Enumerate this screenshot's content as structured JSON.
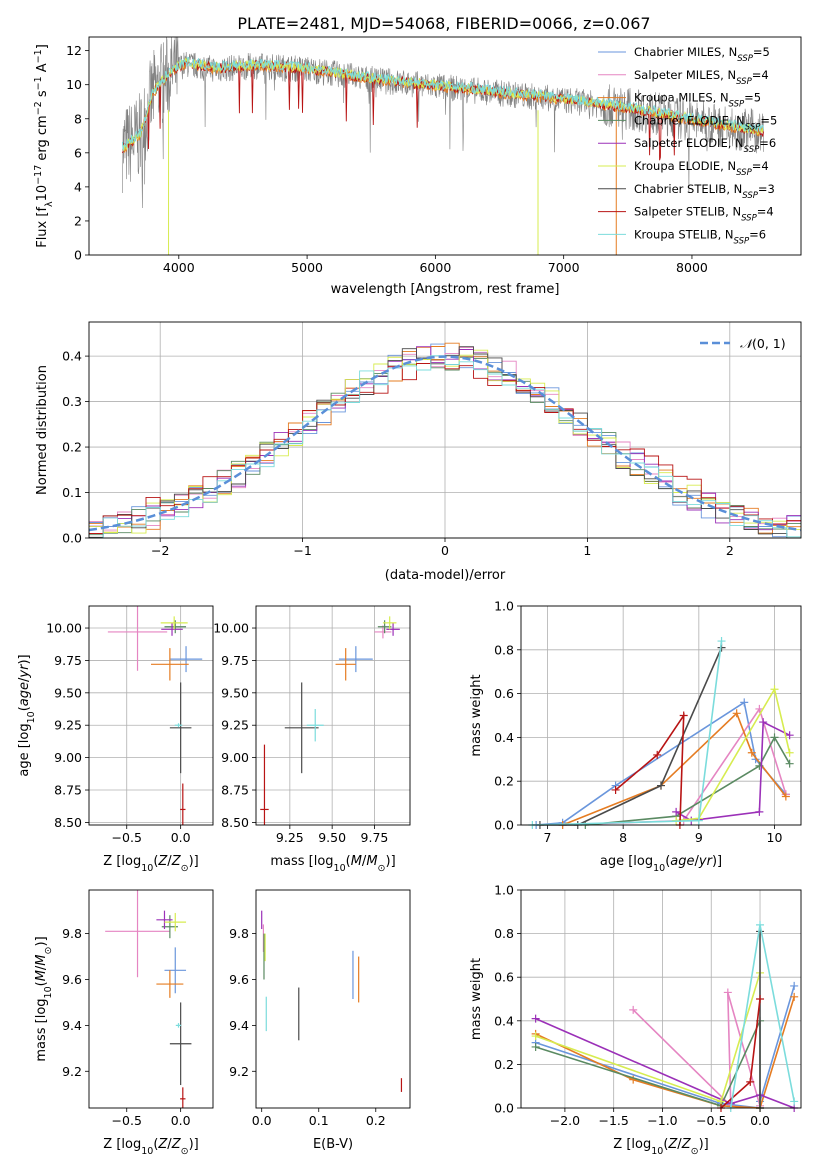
{
  "figure": {
    "title": "PLATE=2481, MJD=54068, FIBERID=0066, z=0.067"
  },
  "colors": {
    "Chabrier MILES": "#6a96dc",
    "Salpeter MILES": "#e585c2",
    "Kroupa MILES": "#e57c22",
    "Chabrier ELODIE": "#5a8a62",
    "Salpeter ELODIE": "#9b30b8",
    "Kroupa ELODIE": "#d7ec50",
    "Chabrier STELIB": "#4a4a4a",
    "Salpeter STELIB": "#b81414",
    "Kroupa STELIB": "#7bdcdc",
    "data": "#808080",
    "normal": "#5a8fd8"
  },
  "chart_data": [
    {
      "type": "line",
      "panel": "spectrum",
      "xlabel": "wavelength [Angstrom, rest frame]",
      "ylabel": "Flux [fλ10⁻¹⁷ erg cm⁻² s⁻¹ A⁻¹]",
      "xlim": [
        3300,
        8850
      ],
      "ylim": [
        0,
        12.8
      ],
      "xticks": [
        4000,
        5000,
        6000,
        7000,
        8000
      ],
      "yticks": [
        0,
        2,
        4,
        6,
        8,
        10,
        12
      ],
      "legend_position": "upper right",
      "legend": [
        {
          "label": "Chabrier MILES, N",
          "sub": "SSP",
          "suffix": "=5"
        },
        {
          "label": "Salpeter MILES, N",
          "sub": "SSP",
          "suffix": "=4"
        },
        {
          "label": "Kroupa MILES, N",
          "sub": "SSP",
          "suffix": "=5"
        },
        {
          "label": "Chabrier ELODIE, N",
          "sub": "SSP",
          "suffix": "=5"
        },
        {
          "label": "Salpeter ELODIE, N",
          "sub": "SSP",
          "suffix": "=6"
        },
        {
          "label": "Kroupa ELODIE, N",
          "sub": "SSP",
          "suffix": "=4"
        },
        {
          "label": "Chabrier STELIB, N",
          "sub": "SSP",
          "suffix": "=3"
        },
        {
          "label": "Salpeter STELIB, N",
          "sub": "SSP",
          "suffix": "=4"
        },
        {
          "label": "Kroupa STELIB, N",
          "sub": "SSP",
          "suffix": "=6"
        }
      ],
      "continuum": [
        [
          3560,
          6.2
        ],
        [
          3700,
          7.0
        ],
        [
          3800,
          9.5
        ],
        [
          3950,
          10.8
        ],
        [
          4050,
          11.2
        ],
        [
          4300,
          10.9
        ],
        [
          4600,
          11.1
        ],
        [
          5000,
          10.9
        ],
        [
          5500,
          10.3
        ],
        [
          6000,
          9.9
        ],
        [
          6500,
          9.5
        ],
        [
          7000,
          9.1
        ],
        [
          7500,
          8.6
        ],
        [
          8000,
          7.9
        ],
        [
          8300,
          7.5
        ],
        [
          8550,
          7.2
        ]
      ]
    },
    {
      "type": "line",
      "panel": "residual-histogram",
      "xlabel": "(data-model)/error",
      "ylabel": "Normed distribution",
      "xlim": [
        -2.5,
        2.5
      ],
      "ylim": [
        0,
        0.475
      ],
      "xticks": [
        -2,
        -1,
        0,
        1,
        2
      ],
      "yticks": [
        0.0,
        0.1,
        0.2,
        0.3,
        0.4
      ],
      "grid": true,
      "legend": "N(0,1)",
      "legend_position": "upper right"
    },
    {
      "type": "scatter",
      "panel": "age-vs-Z",
      "xlabel": "Z [log10(Z/Z⊙)]",
      "ylabel": "age  [log10(age/yr)]",
      "xlim": [
        -0.85,
        0.3
      ],
      "ylim": [
        8.48,
        10.17
      ],
      "xticks": [
        -0.5,
        0.0
      ],
      "yticks": [
        8.5,
        8.75,
        9.0,
        9.25,
        9.5,
        9.75,
        10.0
      ],
      "grid": true,
      "series": [
        {
          "name": "Chabrier MILES",
          "x": 0.05,
          "y": 9.76,
          "xerr": 0.3,
          "yerr": 0.2
        },
        {
          "name": "Salpeter MILES",
          "x": -0.4,
          "y": 9.97,
          "xerr": 0.55,
          "yerr": 0.6
        },
        {
          "name": "Kroupa MILES",
          "x": -0.1,
          "y": 9.72,
          "xerr": 0.35,
          "yerr": 0.25
        },
        {
          "name": "Chabrier ELODIE",
          "x": -0.05,
          "y": 10.01,
          "xerr": 0.2,
          "yerr": 0.1
        },
        {
          "name": "Salpeter ELODIE",
          "x": -0.08,
          "y": 9.99,
          "xerr": 0.2,
          "yerr": 0.1
        },
        {
          "name": "Kroupa ELODIE",
          "x": -0.06,
          "y": 10.04,
          "xerr": 0.25,
          "yerr": 0.1
        },
        {
          "name": "Chabrier STELIB",
          "x": 0.0,
          "y": 9.23,
          "xerr": 0.2,
          "yerr": 0.7
        },
        {
          "name": "Salpeter STELIB",
          "x": 0.02,
          "y": 8.6,
          "xerr": 0.05,
          "yerr": 0.4
        },
        {
          "name": "Kroupa STELIB",
          "x": -0.02,
          "y": 9.25,
          "xerr": 0.07,
          "yerr": 0.03
        }
      ]
    },
    {
      "type": "scatter",
      "panel": "age-vs-mass",
      "xlabel": "mass [log10(M/M⊙)]",
      "ylabel": "",
      "xlim": [
        9.05,
        9.96
      ],
      "ylim": [
        8.48,
        10.17
      ],
      "xticks": [
        9.25,
        9.5,
        9.75
      ],
      "yticks": [
        8.5,
        8.75,
        9.0,
        9.25,
        9.5,
        9.75,
        10.0
      ],
      "grid": true,
      "series": [
        {
          "name": "Chabrier MILES",
          "x": 9.64,
          "y": 9.76,
          "xerr": 0.2,
          "yerr": 0.2
        },
        {
          "name": "Salpeter MILES",
          "x": 9.8,
          "y": 9.97,
          "xerr": 0.1,
          "yerr": 0.1
        },
        {
          "name": "Kroupa MILES",
          "x": 9.58,
          "y": 9.72,
          "xerr": 0.12,
          "yerr": 0.25
        },
        {
          "name": "Chabrier ELODIE",
          "x": 9.81,
          "y": 10.01,
          "xerr": 0.08,
          "yerr": 0.1
        },
        {
          "name": "Salpeter ELODIE",
          "x": 9.86,
          "y": 9.99,
          "xerr": 0.08,
          "yerr": 0.1
        },
        {
          "name": "Kroupa ELODIE",
          "x": 9.84,
          "y": 10.04,
          "xerr": 0.08,
          "yerr": 0.1
        },
        {
          "name": "Chabrier STELIB",
          "x": 9.32,
          "y": 9.23,
          "xerr": 0.2,
          "yerr": 0.7
        },
        {
          "name": "Salpeter STELIB",
          "x": 9.1,
          "y": 8.6,
          "xerr": 0.05,
          "yerr": 1.0
        },
        {
          "name": "Kroupa STELIB",
          "x": 9.4,
          "y": 9.25,
          "xerr": 0.1,
          "yerr": 0.25
        }
      ]
    },
    {
      "type": "line",
      "panel": "mass-weight-vs-age",
      "xlabel": "age  [log10(age/yr)]",
      "ylabel": "mass weight",
      "xlim": [
        6.65,
        10.35
      ],
      "ylim": [
        0,
        1.0
      ],
      "xticks": [
        7,
        8,
        9,
        10
      ],
      "yticks": [
        0.0,
        0.2,
        0.4,
        0.6,
        0.8,
        1.0
      ],
      "grid": true,
      "series": [
        {
          "name": "Chabrier MILES",
          "points": [
            [
              6.85,
              0.0
            ],
            [
              7.2,
              0.01
            ],
            [
              7.9,
              0.18
            ],
            [
              9.6,
              0.56
            ],
            [
              9.75,
              0.3
            ],
            [
              10.15,
              0.14
            ]
          ]
        },
        {
          "name": "Salpeter MILES",
          "points": [
            [
              7.2,
              0.0
            ],
            [
              8.8,
              0.02
            ],
            [
              9.8,
              0.53
            ],
            [
              10.15,
              0.14
            ]
          ]
        },
        {
          "name": "Kroupa MILES",
          "points": [
            [
              7.2,
              0.0
            ],
            [
              8.5,
              0.18
            ],
            [
              9.5,
              0.51
            ],
            [
              9.7,
              0.33
            ],
            [
              10.15,
              0.13
            ]
          ]
        },
        {
          "name": "Chabrier ELODIE",
          "points": [
            [
              7.5,
              0.0
            ],
            [
              8.7,
              0.04
            ],
            [
              9.8,
              0.27
            ],
            [
              10.0,
              0.4
            ],
            [
              10.2,
              0.28
            ]
          ]
        },
        {
          "name": "Salpeter ELODIE",
          "points": [
            [
              8.7,
              0.06
            ],
            [
              8.9,
              0.02
            ],
            [
              9.8,
              0.06
            ],
            [
              9.85,
              0.47
            ],
            [
              10.2,
              0.41
            ]
          ]
        },
        {
          "name": "Kroupa ELODIE",
          "points": [
            [
              8.7,
              0.02
            ],
            [
              9.0,
              0.03
            ],
            [
              10.0,
              0.62
            ],
            [
              10.2,
              0.33
            ]
          ]
        },
        {
          "name": "Chabrier STELIB",
          "points": [
            [
              6.9,
              0.0
            ],
            [
              7.4,
              0.0
            ],
            [
              8.5,
              0.18
            ],
            [
              9.3,
              0.81
            ]
          ]
        },
        {
          "name": "Salpeter STELIB",
          "points": [
            [
              7.9,
              0.16
            ],
            [
              8.45,
              0.32
            ],
            [
              8.8,
              0.5
            ],
            [
              8.75,
              0.0
            ]
          ]
        },
        {
          "name": "Kroupa STELIB",
          "points": [
            [
              6.8,
              0.0
            ],
            [
              9.0,
              0.02
            ],
            [
              9.3,
              0.84
            ]
          ]
        }
      ]
    },
    {
      "type": "scatter",
      "panel": "mass-vs-Z",
      "xlabel": "Z [log10(Z/Z⊙)]",
      "ylabel": "mass [log10(M/M⊙)]",
      "xlim": [
        -0.85,
        0.3
      ],
      "ylim": [
        9.04,
        9.99
      ],
      "xticks": [
        -0.5,
        0.0
      ],
      "yticks": [
        9.2,
        9.4,
        9.6,
        9.8
      ],
      "grid": false,
      "series": [
        {
          "name": "Chabrier MILES",
          "x": -0.05,
          "y": 9.64,
          "xerr": 0.2,
          "yerr": 0.2
        },
        {
          "name": "Salpeter MILES",
          "x": -0.4,
          "y": 9.81,
          "xerr": 0.6,
          "yerr": 0.4
        },
        {
          "name": "Kroupa MILES",
          "x": -0.1,
          "y": 9.58,
          "xerr": 0.25,
          "yerr": 0.12
        },
        {
          "name": "Chabrier ELODIE",
          "x": -0.1,
          "y": 9.83,
          "xerr": 0.15,
          "yerr": 0.1
        },
        {
          "name": "Salpeter ELODIE",
          "x": -0.15,
          "y": 9.86,
          "xerr": 0.15,
          "yerr": 0.08
        },
        {
          "name": "Kroupa ELODIE",
          "x": -0.05,
          "y": 9.85,
          "xerr": 0.2,
          "yerr": 0.08
        },
        {
          "name": "Chabrier STELIB",
          "x": 0.0,
          "y": 9.32,
          "xerr": 0.2,
          "yerr": 0.36
        },
        {
          "name": "Salpeter STELIB",
          "x": 0.02,
          "y": 9.08,
          "xerr": 0.05,
          "yerr": 0.1
        },
        {
          "name": "Kroupa STELIB",
          "x": -0.02,
          "y": 9.4,
          "xerr": 0.05,
          "yerr": 0.02
        }
      ]
    },
    {
      "type": "scatter",
      "panel": "mass-vs-EBV",
      "xlabel": "E(B-V)",
      "ylabel": "",
      "xlim": [
        -0.01,
        0.26
      ],
      "ylim": [
        9.04,
        9.99
      ],
      "xticks": [
        0.0,
        0.1,
        0.2
      ],
      "yticks": [
        9.2,
        9.4,
        9.6,
        9.8
      ],
      "grid": false,
      "series": [
        {
          "name": "Chabrier MILES",
          "x": 0.16,
          "y": 9.62,
          "yerr": 0.21
        },
        {
          "name": "Salpeter MILES",
          "x": 0.003,
          "y": 9.78,
          "yerr": 0.12
        },
        {
          "name": "Kroupa MILES",
          "x": 0.17,
          "y": 9.6,
          "yerr": 0.2
        },
        {
          "name": "Chabrier ELODIE",
          "x": 0.004,
          "y": 9.7,
          "yerr": 0.2
        },
        {
          "name": "Salpeter ELODIE",
          "x": 0.0,
          "y": 9.86,
          "yerr": 0.08
        },
        {
          "name": "Kroupa ELODIE",
          "x": 0.006,
          "y": 9.74,
          "yerr": 0.12
        },
        {
          "name": "Chabrier STELIB",
          "x": 0.065,
          "y": 9.45,
          "yerr": 0.23
        },
        {
          "name": "Salpeter STELIB",
          "x": 0.245,
          "y": 9.14,
          "yerr": 0.06
        },
        {
          "name": "Kroupa STELIB",
          "x": 0.008,
          "y": 9.45,
          "yerr": 0.15
        }
      ]
    },
    {
      "type": "line",
      "panel": "mass-weight-vs-Z",
      "xlabel": "Z [log10(Z/Z⊙)]",
      "ylabel": "mass weight",
      "xlim": [
        -2.45,
        0.42
      ],
      "ylim": [
        0,
        1.0
      ],
      "xticks": [
        -2.0,
        -1.5,
        -1.0,
        -0.5,
        0.0
      ],
      "yticks": [
        0.0,
        0.2,
        0.4,
        0.6,
        0.8,
        1.0
      ],
      "grid": true,
      "series": [
        {
          "name": "Chabrier MILES",
          "points": [
            [
              -2.3,
              0.3
            ],
            [
              -0.4,
              0.02
            ],
            [
              0.0,
              0.0
            ],
            [
              0.0,
              0.03
            ],
            [
              0.35,
              0.56
            ]
          ]
        },
        {
          "name": "Salpeter MILES",
          "points": [
            [
              -1.3,
              0.45
            ],
            [
              -0.3,
              0.01
            ],
            [
              -0.33,
              0.53
            ],
            [
              -0.0,
              0.01
            ]
          ]
        },
        {
          "name": "Kroupa MILES",
          "points": [
            [
              -2.3,
              0.34
            ],
            [
              -1.3,
              0.13
            ],
            [
              -0.4,
              0.01
            ],
            [
              0.0,
              0.0
            ],
            [
              0.35,
              0.51
            ]
          ]
        },
        {
          "name": "Chabrier ELODIE",
          "points": [
            [
              -2.3,
              0.28
            ],
            [
              -0.4,
              0.01
            ],
            [
              0.0,
              0.4
            ],
            [
              0.0,
              0.0
            ]
          ]
        },
        {
          "name": "Salpeter ELODIE",
          "points": [
            [
              -2.3,
              0.41
            ],
            [
              -0.3,
              0.02
            ],
            [
              0.0,
              0.06
            ],
            [
              0.35,
              0.0
            ]
          ]
        },
        {
          "name": "Kroupa ELODIE",
          "points": [
            [
              -2.3,
              0.33
            ],
            [
              -0.4,
              0.03
            ],
            [
              0.0,
              0.62
            ]
          ]
        },
        {
          "name": "Chabrier STELIB",
          "points": [
            [
              0.0,
              0.0
            ],
            [
              0.0,
              0.81
            ]
          ]
        },
        {
          "name": "Salpeter STELIB",
          "points": [
            [
              -0.4,
              0.0
            ],
            [
              -0.1,
              0.12
            ],
            [
              0.0,
              0.5
            ]
          ]
        },
        {
          "name": "Kroupa STELIB",
          "points": [
            [
              -0.3,
              0.0
            ],
            [
              0.0,
              0.84
            ],
            [
              0.35,
              0.03
            ]
          ]
        }
      ]
    }
  ]
}
